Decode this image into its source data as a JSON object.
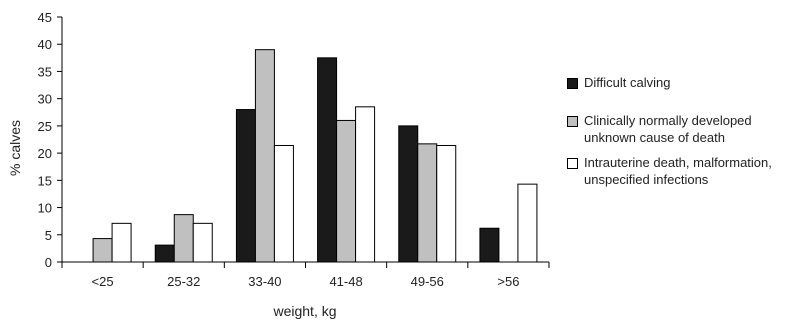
{
  "chart_data": {
    "type": "bar",
    "categories": [
      "<25",
      "25-32",
      "33-40",
      "41-48",
      "49-56",
      ">56"
    ],
    "series": [
      {
        "name": "Difficult calving",
        "color": "#1a1a1a",
        "values": [
          0,
          3.1,
          28,
          37.5,
          25,
          6.2
        ]
      },
      {
        "name": "Clinically normally developed unknown cause of death",
        "color": "#c0c0c0",
        "values": [
          4.3,
          8.7,
          39,
          26,
          21.7,
          0
        ]
      },
      {
        "name": "Intrauterine death, malformation, unspecified infections",
        "color": "#ffffff",
        "values": [
          7.1,
          7.1,
          21.4,
          28.5,
          21.4,
          14.3
        ]
      }
    ],
    "xlabel": "weight, kg",
    "ylabel": "% calves",
    "ylim": [
      0,
      45
    ],
    "yticks": [
      0,
      5,
      10,
      15,
      20,
      25,
      30,
      35,
      40,
      45
    ],
    "grid": false,
    "legend_position": "right"
  },
  "legend": {
    "items": [
      {
        "lines": [
          "Difficult calving"
        ],
        "color": "#1a1a1a"
      },
      {
        "lines": [
          "Clinically normally developed",
          "unknown cause of death"
        ],
        "color": "#c0c0c0"
      },
      {
        "lines": [
          "Intrauterine death, malformation,",
          "unspecified infections"
        ],
        "color": "#ffffff"
      }
    ]
  }
}
